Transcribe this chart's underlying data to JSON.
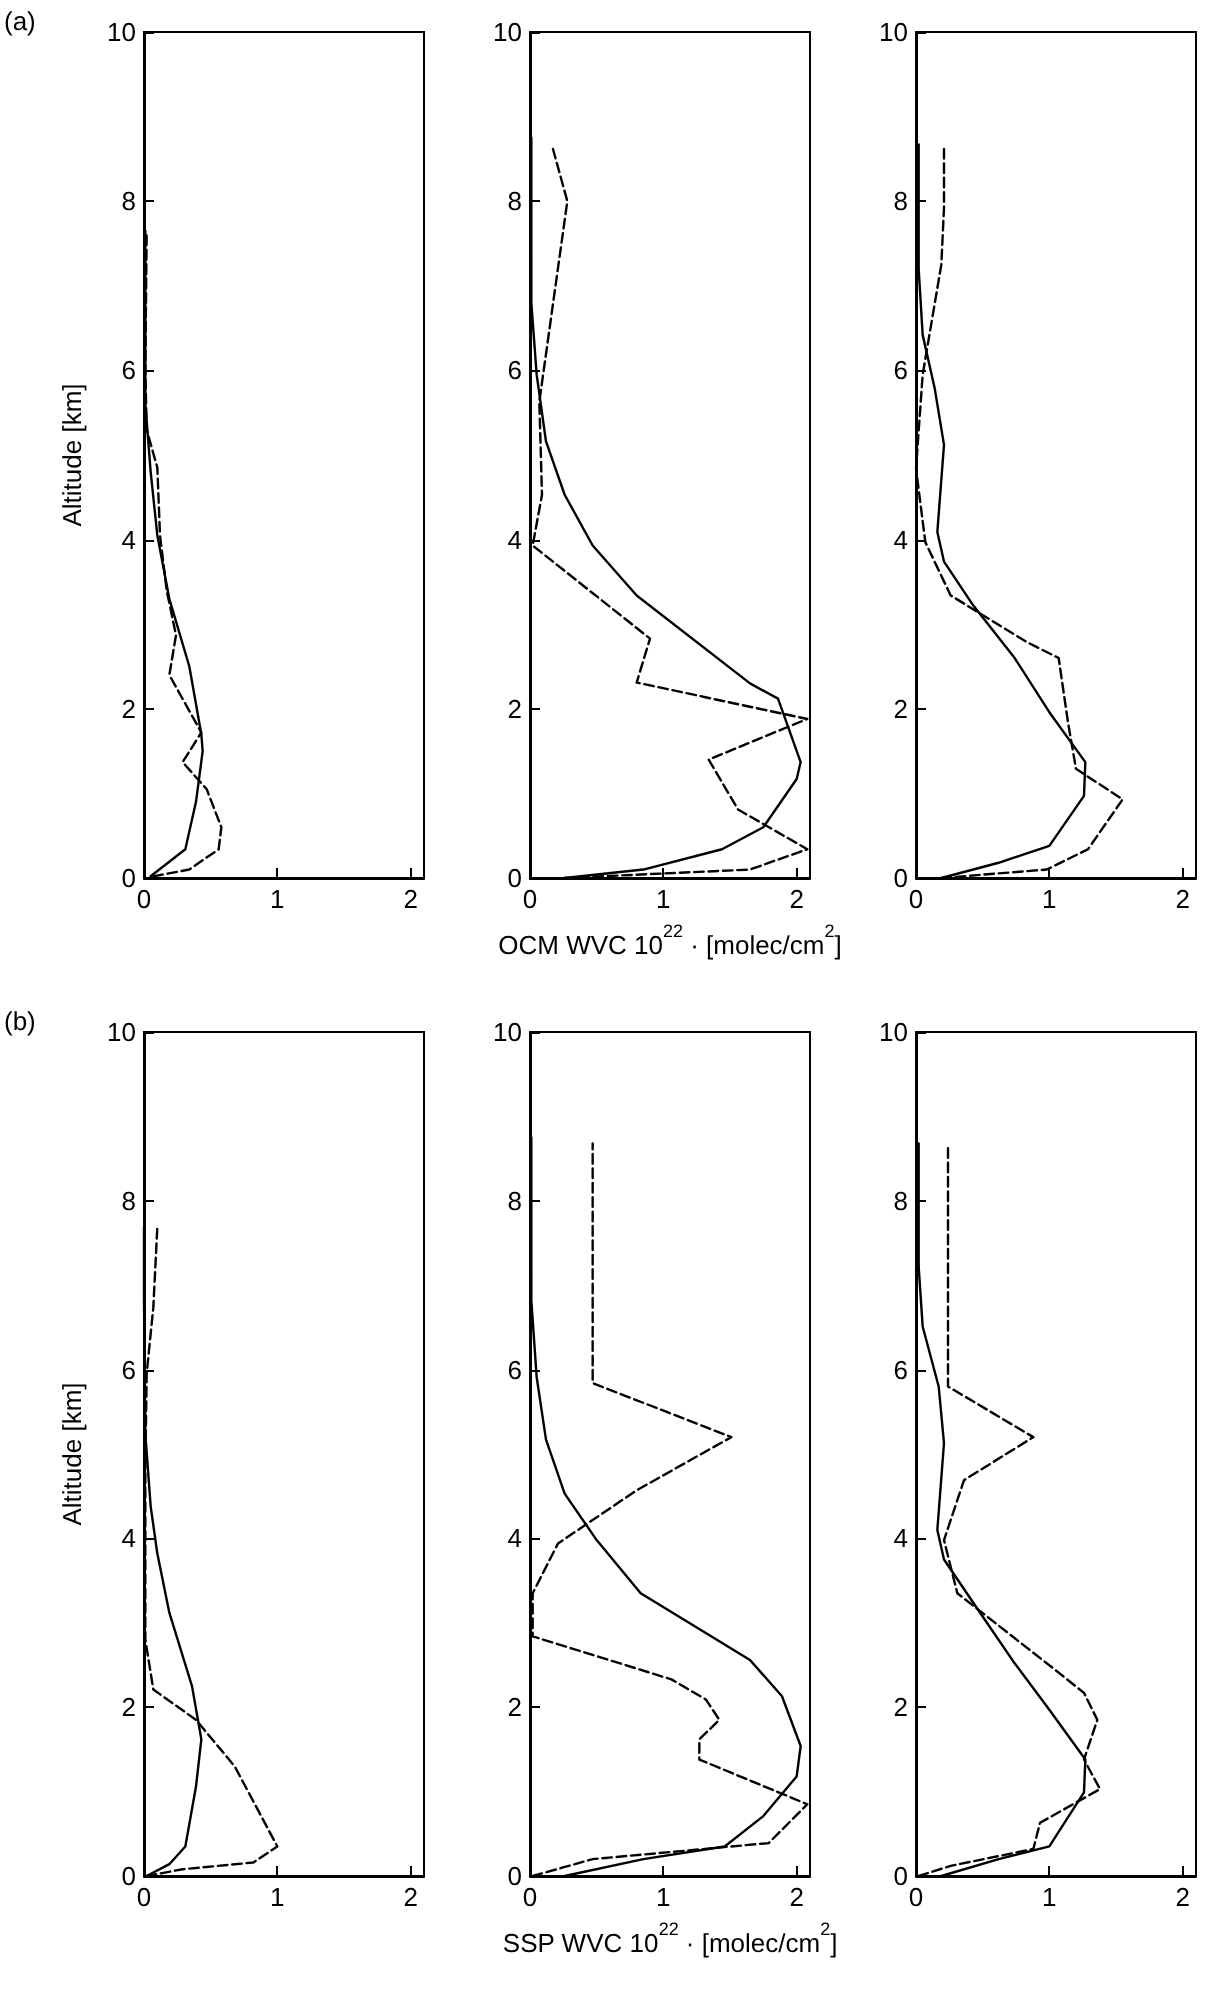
{
  "chart_data": [
    {
      "type": "line",
      "ylabel": "Altitude [km]",
      "annotations": [
        "(a)"
      ],
      "xlim": [
        0,
        2.1
      ],
      "xticks": [
        0,
        1,
        2
      ],
      "ylim": [
        0,
        10
      ],
      "yticks": [
        0,
        2,
        4,
        6,
        8,
        10
      ],
      "marker": "none",
      "series": [
        {
          "color": "#000000",
          "line_style": "solid",
          "x": [
            0.05,
            0.31,
            0.39,
            0.44,
            0.43,
            0.34,
            0.19,
            0.1,
            0.05,
            0.01,
            0.01,
            0.01
          ],
          "values": [
            0.02,
            0.34,
            0.9,
            1.5,
            1.7,
            2.5,
            3.3,
            4.05,
            4.8,
            5.6,
            7.2,
            7.65
          ]
        },
        {
          "color": "#000000",
          "line_style": "dashed",
          "x": [
            0.07,
            0.34,
            0.56,
            0.58,
            0.47,
            0.29,
            0.43,
            0.19,
            0.24,
            0.17,
            0.12,
            0.1,
            0.02,
            0.01,
            0.02
          ],
          "values": [
            0.02,
            0.1,
            0.34,
            0.6,
            1.05,
            1.37,
            1.72,
            2.4,
            2.87,
            3.4,
            4.05,
            4.85,
            5.3,
            6.0,
            7.65
          ]
        }
      ]
    },
    {
      "type": "line",
      "xlabel": "OCM WVC 10$^{22}$ · [molec/cm$^{2}$]",
      "xlim": [
        0,
        2.1
      ],
      "xticks": [
        0,
        1,
        2
      ],
      "ylim": [
        0,
        10
      ],
      "yticks": [
        0,
        2,
        4,
        6,
        8,
        10
      ],
      "marker": "none",
      "series": [
        {
          "color": "#000000",
          "line_style": "solid",
          "x": [
            0.26,
            0.85,
            1.44,
            1.75,
            2.0,
            2.03,
            1.86,
            1.65,
            0.8,
            0.47,
            0.26,
            0.12,
            0.05,
            0.01,
            0.01
          ],
          "values": [
            0,
            0.1,
            0.34,
            0.6,
            1.17,
            1.37,
            2.12,
            2.3,
            3.34,
            3.93,
            4.53,
            5.16,
            5.95,
            6.8,
            8.75
          ]
        },
        {
          "color": "#000000",
          "line_style": "dashed",
          "x": [
            0.26,
            1.65,
            2.08,
            1.56,
            1.34,
            2.08,
            0.8,
            0.9,
            0.02,
            0.09,
            0.07,
            0.28,
            0.17
          ],
          "values": [
            0,
            0.1,
            0.34,
            0.81,
            1.4,
            1.88,
            2.31,
            2.83,
            3.93,
            4.53,
            5.63,
            8.0,
            8.63
          ]
        }
      ]
    },
    {
      "type": "line",
      "xlim": [
        0,
        2.1
      ],
      "xticks": [
        0,
        1,
        2
      ],
      "ylim": [
        0,
        10
      ],
      "yticks": [
        0,
        2,
        4,
        6,
        8,
        10
      ],
      "marker": "none",
      "series": [
        {
          "color": "#000000",
          "line_style": "solid",
          "x": [
            0.19,
            0.62,
            1.0,
            1.26,
            1.27,
            1.0,
            0.74,
            0.43,
            0.21,
            0.16,
            0.21,
            0.14,
            0.05,
            0.02,
            0.02
          ],
          "values": [
            0,
            0.18,
            0.38,
            0.97,
            1.37,
            1.96,
            2.6,
            3.22,
            3.74,
            4.09,
            5.12,
            5.79,
            6.42,
            7.2,
            8.67
          ]
        },
        {
          "color": "#000000",
          "line_style": "dashed",
          "x": [
            0.19,
            0.98,
            1.29,
            1.55,
            1.2,
            1.14,
            1.07,
            0.83,
            0.26,
            0.07,
            0,
            0.05,
            0.19,
            0.21,
            0.21
          ],
          "values": [
            0,
            0.1,
            0.34,
            0.93,
            1.29,
            1.84,
            2.6,
            2.79,
            3.34,
            3.97,
            4.84,
            5.95,
            7.25,
            7.92,
            8.63
          ]
        }
      ]
    },
    {
      "type": "line",
      "ylabel": "Altitude [km]",
      "annotations": [
        "(b)"
      ],
      "xlim": [
        0,
        2.1
      ],
      "xticks": [
        0,
        1,
        2
      ],
      "ylim": [
        0,
        10
      ],
      "yticks": [
        0,
        2,
        4,
        6,
        8,
        10
      ],
      "marker": "none",
      "series": [
        {
          "color": "#000000",
          "line_style": "solid",
          "x": [
            0.02,
            0.19,
            0.31,
            0.39,
            0.43,
            0.36,
            0.19,
            0.1,
            0.05,
            0.01,
            0,
            0
          ],
          "values": [
            0,
            0.14,
            0.35,
            1.06,
            1.62,
            2.25,
            3.12,
            3.82,
            4.38,
            5.24,
            6.82,
            7.69
          ]
        },
        {
          "color": "#000000",
          "line_style": "dashed",
          "x": [
            0.02,
            0.29,
            0.82,
            1.0,
            0.68,
            0.39,
            0.07,
            0.01,
            0.01,
            0.02,
            0.07,
            0.1
          ],
          "values": [
            0,
            0.08,
            0.16,
            0.35,
            1.3,
            1.85,
            2.21,
            2.8,
            4.85,
            5.95,
            6.74,
            7.69
          ]
        }
      ]
    },
    {
      "type": "line",
      "xlabel": "SSP WVC 10$^{22}$ · [molec/cm$^{2}$]",
      "xlim": [
        0,
        2.1
      ],
      "xticks": [
        0,
        1,
        2
      ],
      "ylim": [
        0,
        10
      ],
      "yticks": [
        0,
        2,
        4,
        6,
        8,
        10
      ],
      "marker": "none",
      "series": [
        {
          "color": "#000000",
          "line_style": "solid",
          "x": [
            0.26,
            0.85,
            1.46,
            1.75,
            2.0,
            2.03,
            1.89,
            1.65,
            0.83,
            0.5,
            0.26,
            0.12,
            0.05,
            0.01,
            0.01
          ],
          "values": [
            0,
            0.2,
            0.35,
            0.71,
            1.18,
            1.54,
            2.13,
            2.56,
            3.35,
            3.98,
            4.53,
            5.17,
            5.91,
            6.82,
            8.75
          ]
        },
        {
          "color": "#000000",
          "line_style": "dashed",
          "x": [
            0.02,
            0.47,
            1.79,
            2.08,
            1.27,
            1.27,
            1.42,
            1.32,
            1.06,
            0.02,
            0.02,
            0.21,
            0.8,
            1.51,
            0.47,
            0.47
          ],
          "values": [
            0,
            0.2,
            0.39,
            0.85,
            1.38,
            1.62,
            1.85,
            2.09,
            2.33,
            2.84,
            3.35,
            3.94,
            4.57,
            5.2,
            5.84,
            8.68
          ]
        }
      ]
    },
    {
      "type": "line",
      "xlim": [
        0,
        2.1
      ],
      "xticks": [
        0,
        1,
        2
      ],
      "ylim": [
        0,
        10
      ],
      "yticks": [
        0,
        2,
        4,
        6,
        8,
        10
      ],
      "marker": "none",
      "series": [
        {
          "color": "#000000",
          "line_style": "solid",
          "x": [
            0.19,
            0.62,
            1.0,
            1.26,
            1.27,
            1.0,
            0.74,
            0.45,
            0.21,
            0.16,
            0.21,
            0.17,
            0.05,
            0.02,
            0.02
          ],
          "values": [
            0,
            0.2,
            0.35,
            0.99,
            1.38,
            1.97,
            2.52,
            3.19,
            3.75,
            4.1,
            5.13,
            5.8,
            6.51,
            7.22,
            8.68
          ]
        },
        {
          "color": "#000000",
          "line_style": "dashed",
          "x": [
            0.02,
            0.26,
            0.88,
            0.93,
            1.38,
            1.26,
            1.36,
            1.26,
            1.07,
            0.31,
            0.21,
            0.36,
            0.88,
            0.24,
            0.24
          ],
          "values": [
            0,
            0.12,
            0.32,
            0.63,
            1.03,
            1.38,
            1.85,
            2.17,
            2.41,
            3.35,
            3.98,
            4.69,
            5.2,
            5.8,
            8.68
          ]
        }
      ]
    }
  ]
}
